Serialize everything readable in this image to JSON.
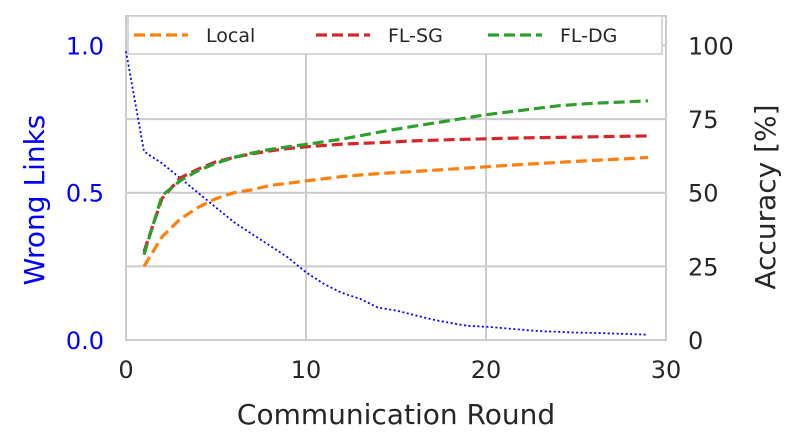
{
  "chart_data": {
    "type": "line",
    "xlabel": "Communication Round",
    "ylabel_left": "Wrong Links",
    "ylabel_right": "Accuracy [%]",
    "xlim": [
      0,
      30
    ],
    "ylim_left": [
      0,
      1.1
    ],
    "ylim_right": [
      0,
      110
    ],
    "xticks": [
      0,
      10,
      20,
      30
    ],
    "yticks_left": [
      0.0,
      0.5,
      1.0
    ],
    "yticks_left_labels": [
      "0.0",
      "0.5",
      "1.0"
    ],
    "yticks_right": [
      0,
      25,
      50,
      75,
      100
    ],
    "grid": true,
    "legend_position": "top",
    "wrong_links": {
      "axis": "left",
      "color": "#0000ff",
      "style": "dotted",
      "x": [
        0,
        1,
        2,
        3,
        4,
        5,
        6,
        7,
        8,
        9,
        10,
        11,
        12,
        13,
        14,
        15,
        16,
        17,
        18,
        19,
        20,
        21,
        22,
        23,
        24,
        25,
        26,
        27,
        28,
        29
      ],
      "values": [
        0.98,
        0.64,
        0.6,
        0.55,
        0.5,
        0.45,
        0.4,
        0.36,
        0.32,
        0.28,
        0.23,
        0.19,
        0.16,
        0.14,
        0.11,
        0.1,
        0.085,
        0.07,
        0.058,
        0.048,
        0.045,
        0.04,
        0.035,
        0.03,
        0.028,
        0.025,
        0.024,
        0.022,
        0.02,
        0.018
      ]
    },
    "series": [
      {
        "name": "Local",
        "axis": "right",
        "color": "#ff7f0e",
        "style": "dashed",
        "x": [
          1,
          2,
          3,
          4,
          5,
          6,
          7,
          8,
          9,
          10,
          12,
          14,
          16,
          18,
          20,
          22,
          24,
          26,
          28,
          29
        ],
        "values": [
          25,
          35,
          41,
          45,
          48,
          50,
          51,
          52.5,
          53.2,
          54,
          55.5,
          56.5,
          57.2,
          58,
          58.8,
          59.6,
          60.3,
          61,
          61.6,
          62
        ]
      },
      {
        "name": "FL-SG",
        "axis": "right",
        "color": "#d62728",
        "style": "dashed",
        "x": [
          1,
          2,
          3,
          4,
          5,
          6,
          7,
          8,
          9,
          10,
          12,
          14,
          16,
          18,
          20,
          22,
          24,
          26,
          28,
          29
        ],
        "values": [
          30,
          48,
          55,
          58,
          60.5,
          62,
          63.2,
          64.2,
          65,
          65.6,
          66.5,
          67,
          67.6,
          68,
          68.3,
          68.6,
          68.8,
          69,
          69.2,
          69.3
        ]
      },
      {
        "name": "FL-DG",
        "axis": "right",
        "color": "#2ca02c",
        "style": "dashed",
        "x": [
          1,
          2,
          3,
          4,
          5,
          6,
          7,
          8,
          9,
          10,
          12,
          14,
          16,
          18,
          20,
          22,
          24,
          26,
          28,
          29
        ],
        "values": [
          29,
          49,
          54,
          57.5,
          60,
          62,
          63.5,
          64.7,
          65.6,
          66.4,
          68.2,
          70.5,
          72.6,
          74.5,
          76.5,
          78,
          79.5,
          80.4,
          80.9,
          81.2
        ]
      }
    ]
  }
}
